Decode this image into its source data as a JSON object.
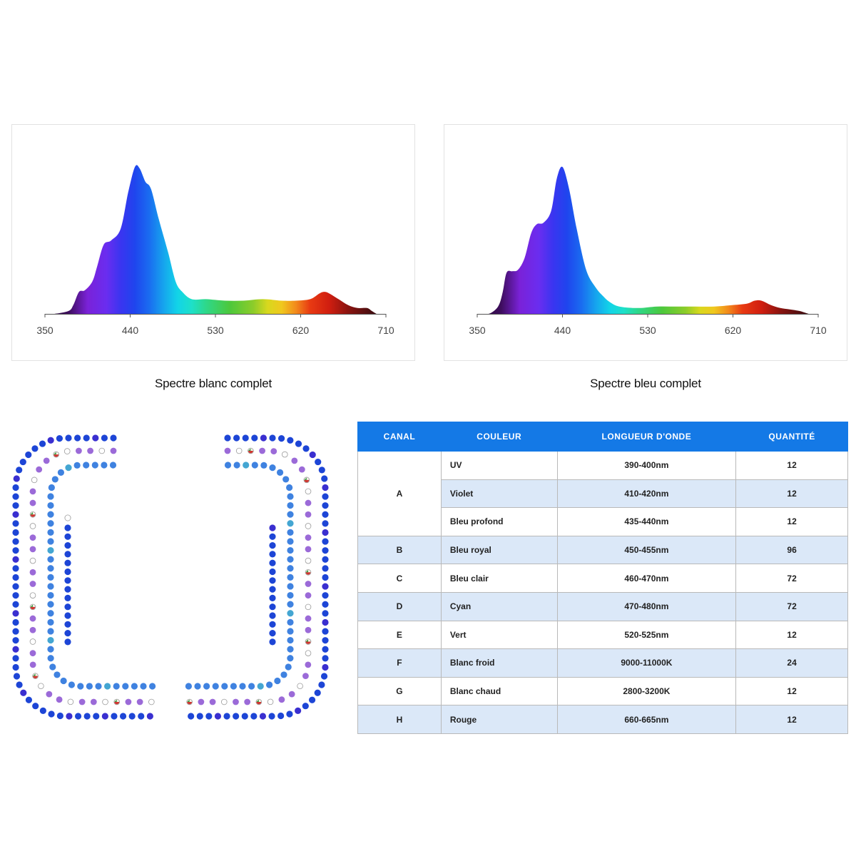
{
  "chart_data": [
    {
      "type": "area",
      "title": "Spectre blanc complet",
      "xlabel": "",
      "ylabel": "",
      "xlim": [
        350,
        710
      ],
      "ylim": [
        0,
        1
      ],
      "x_ticks": [
        350,
        440,
        530,
        620,
        710
      ],
      "grid": false,
      "x": [
        350,
        360,
        375,
        380,
        386,
        392,
        400,
        405,
        412,
        420,
        430,
        438,
        445,
        450,
        456,
        462,
        470,
        480,
        488,
        495,
        505,
        520,
        540,
        560,
        580,
        600,
        615,
        630,
        640,
        645,
        650,
        660,
        670,
        680,
        690,
        695,
        700
      ],
      "values": [
        0.0,
        0.0,
        0.02,
        0.06,
        0.15,
        0.16,
        0.22,
        0.32,
        0.47,
        0.5,
        0.58,
        0.83,
        1.0,
        0.99,
        0.9,
        0.85,
        0.65,
        0.42,
        0.22,
        0.15,
        0.1,
        0.1,
        0.09,
        0.09,
        0.1,
        0.09,
        0.09,
        0.1,
        0.14,
        0.15,
        0.14,
        0.1,
        0.06,
        0.04,
        0.04,
        0.02,
        0.0
      ]
    },
    {
      "type": "area",
      "title": "Spectre bleu complet",
      "xlabel": "",
      "ylabel": "",
      "xlim": [
        350,
        710
      ],
      "ylim": [
        0,
        1
      ],
      "x_ticks": [
        350,
        440,
        530,
        620,
        710
      ],
      "grid": false,
      "x": [
        350,
        362,
        372,
        377,
        381,
        387,
        393,
        400,
        407,
        413,
        420,
        428,
        434,
        440,
        447,
        455,
        465,
        475,
        483,
        490,
        500,
        520,
        540,
        560,
        580,
        600,
        620,
        635,
        643,
        650,
        660,
        670,
        680,
        690,
        695,
        700
      ],
      "values": [
        0.0,
        0.0,
        0.05,
        0.15,
        0.28,
        0.29,
        0.3,
        0.38,
        0.55,
        0.61,
        0.62,
        0.7,
        0.92,
        1.0,
        0.85,
        0.58,
        0.3,
        0.18,
        0.12,
        0.08,
        0.05,
        0.04,
        0.05,
        0.05,
        0.05,
        0.05,
        0.06,
        0.07,
        0.09,
        0.09,
        0.06,
        0.04,
        0.03,
        0.02,
        0.01,
        0.0
      ]
    }
  ],
  "captions": {
    "white": "Spectre blanc complet",
    "blue": "Spectre bleu complet"
  },
  "led_layout": {
    "description_colors": {
      "A": "#3a2fd0",
      "B": "#1d45d6",
      "C": "#3f82e0",
      "D": "#44a6d2",
      "E": "#3aa044",
      "F": "#ffffff",
      "G": "#f3efe2",
      "H": "#d03530",
      "violet": "#9b6ad8"
    }
  },
  "table": {
    "headers": [
      "CANAL",
      "COULEUR",
      "LONGUEUR D'ONDE",
      "QUANTITÉ"
    ],
    "rows": [
      {
        "canal": "A",
        "couleur": "UV",
        "longueur": "390-400nm",
        "quantite": "12"
      },
      {
        "canal": "",
        "couleur": "Violet",
        "longueur": "410-420nm",
        "quantite": "12"
      },
      {
        "canal": "",
        "couleur": "Bleu profond",
        "longueur": "435-440nm",
        "quantite": "12"
      },
      {
        "canal": "B",
        "couleur": "Bleu royal",
        "longueur": "450-455nm",
        "quantite": "96"
      },
      {
        "canal": "C",
        "couleur": "Bleu clair",
        "longueur": "460-470nm",
        "quantite": "72"
      },
      {
        "canal": "D",
        "couleur": "Cyan",
        "longueur": "470-480nm",
        "quantite": "72"
      },
      {
        "canal": "E",
        "couleur": "Vert",
        "longueur": "520-525nm",
        "quantite": "12"
      },
      {
        "canal": "F",
        "couleur": "Blanc froid",
        "longueur": "9000-11000K",
        "quantite": "24"
      },
      {
        "canal": "G",
        "couleur": "Blanc chaud",
        "longueur": "2800-3200K",
        "quantite": "12"
      },
      {
        "canal": "H",
        "couleur": "Rouge",
        "longueur": "660-665nm",
        "quantite": "12"
      }
    ]
  }
}
